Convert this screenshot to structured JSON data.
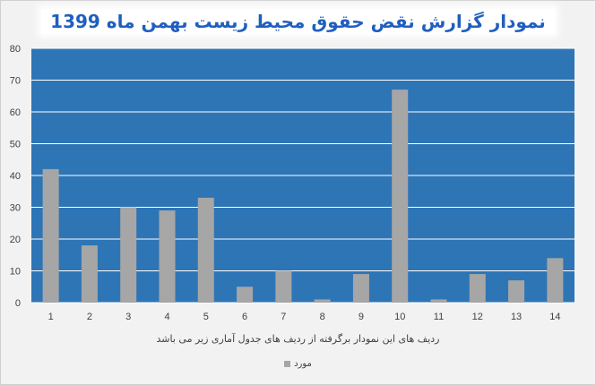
{
  "chart_data": {
    "type": "bar",
    "title": "نمودار گزارش نقض حقوق محیط زیست بهمن ماه 1399",
    "xlabel": "ردیف های این نمودار برگرفته از ردیف های جدول آماری زیر می باشد",
    "ylabel": "",
    "categories": [
      "1",
      "2",
      "3",
      "4",
      "5",
      "6",
      "7",
      "8",
      "9",
      "10",
      "11",
      "12",
      "13",
      "14"
    ],
    "series": [
      {
        "name": "مورد",
        "values": [
          42,
          18,
          30,
          29,
          33,
          5,
          10,
          1,
          9,
          67,
          1,
          9,
          7,
          14
        ]
      }
    ],
    "ylim": [
      0,
      80
    ],
    "yticks": [
      0,
      10,
      20,
      30,
      40,
      50,
      60,
      70,
      80
    ],
    "grid": true,
    "legend": "bottom",
    "colors": {
      "plot_background": "#2e75b6",
      "bar": "#a6a6a6",
      "gridline": "#ffffff",
      "title": "#1f5fbf"
    }
  }
}
